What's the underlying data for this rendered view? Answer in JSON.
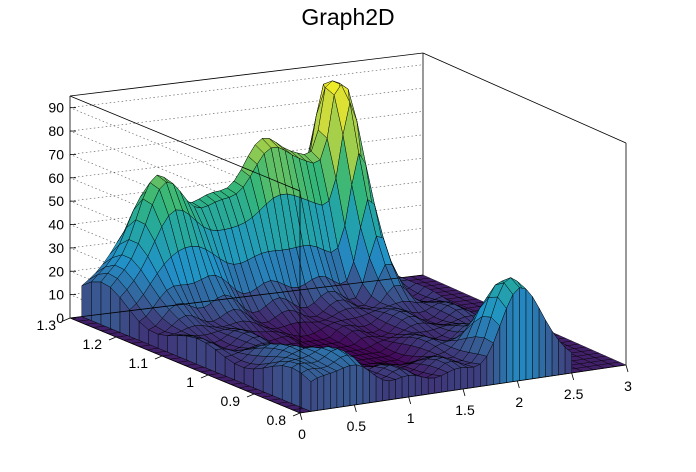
{
  "title": "Graph2D",
  "chart_data": {
    "type": "surface",
    "title": "Graph2D",
    "xlabel": "",
    "ylabel": "",
    "zlabel": "",
    "xlim": [
      0,
      3
    ],
    "ylim": [
      0.8,
      1.3
    ],
    "zlim": [
      0,
      95
    ],
    "x_ticks": [
      "0",
      "0.5",
      "1",
      "1.5",
      "2",
      "2.5",
      "3"
    ],
    "y_ticks": [
      "0.8",
      "0.9",
      "1",
      "1.1",
      "1.2",
      "1.3"
    ],
    "z_ticks": [
      "0",
      "10",
      "20",
      "30",
      "40",
      "50",
      "60",
      "70",
      "80",
      "90"
    ],
    "grid": true,
    "colormap": "viridis",
    "data_region": {
      "x": [
        0.1,
        2.5
      ],
      "y": [
        0.8,
        1.3
      ]
    },
    "features": [
      {
        "x": 0.6,
        "y": 1.25,
        "z": 55
      },
      {
        "x": 2.1,
        "y": 1.25,
        "z": 90
      },
      {
        "x": 2.05,
        "y": 0.8,
        "z": 40
      },
      {
        "x": 1.4,
        "y": 1.05,
        "z": 20
      }
    ]
  }
}
